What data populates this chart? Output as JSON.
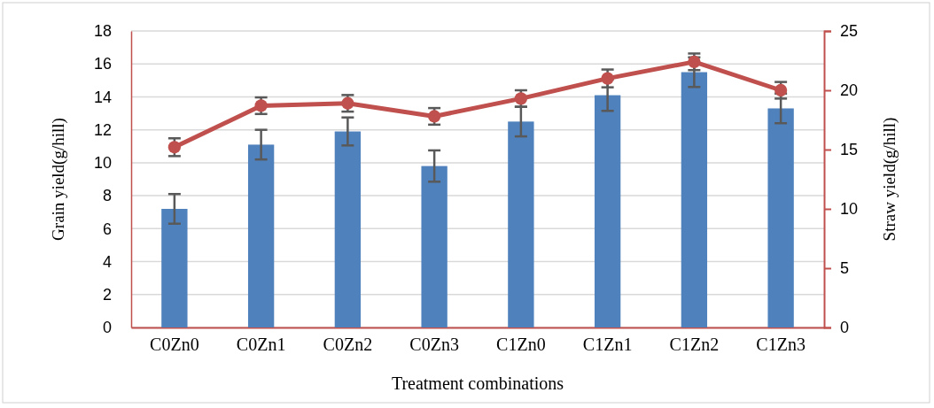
{
  "chart_data": {
    "type": "bar",
    "categories": [
      "C0Zn0",
      "C0Zn1",
      "C0Zn2",
      "C0Zn3",
      "C1Zn0",
      "C1Zn1",
      "C1Zn2",
      "C1Zn3"
    ],
    "xlabel": "Treatment combinations",
    "ylabel": "Grain yield(g/hill)",
    "y2label": "Straw yield(g/hill)",
    "series": [
      {
        "color": "#4f81bd",
        "values": [
          7.2,
          11.1,
          11.9,
          9.8,
          12.5,
          14.1,
          15.5,
          13.3
        ],
        "errors": [
          0.9,
          0.9,
          0.85,
          0.95,
          0.9,
          0.95,
          0.9,
          0.9
        ]
      },
      {
        "type": "line",
        "axis": "y2",
        "color": "#c0504d",
        "marker": "circle",
        "values": [
          15.2,
          18.7,
          18.9,
          17.8,
          19.3,
          21.0,
          22.4,
          20.0
        ],
        "errors": [
          0.75,
          0.7,
          0.7,
          0.7,
          0.7,
          0.75,
          0.7,
          0.7
        ]
      }
    ],
    "ylim": [
      0,
      18
    ],
    "yticks": [
      0,
      2,
      4,
      6,
      8,
      10,
      12,
      14,
      16,
      18
    ],
    "y2lim": [
      0,
      25
    ],
    "y2ticks": [
      0,
      5,
      10,
      15,
      20,
      25
    ],
    "grid": "y"
  }
}
